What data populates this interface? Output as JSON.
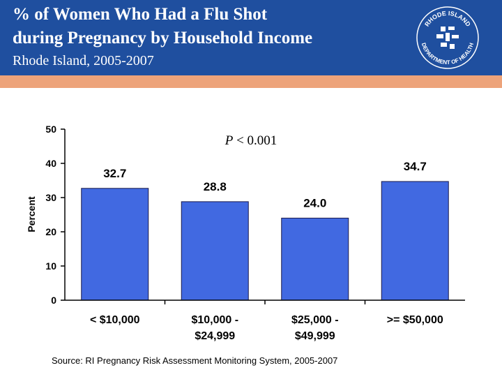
{
  "header": {
    "title_line_1": "% of Women Who Had a Flu Shot",
    "title_line_2": "during Pregnancy  by Household Income",
    "subtitle": "Rhode Island, 2005-2007",
    "logo_text_top": "RHODE ISLAND",
    "logo_text_bottom": "DEPARTMENT OF HEALTH",
    "logo_icon": "ri-department-of-health-seal"
  },
  "colors": {
    "header_bg": "#1f4f9f",
    "accent_bar": "#eda37a",
    "bar_fill": "#4169e1"
  },
  "chart_data": {
    "type": "bar",
    "categories": [
      [
        "< $10,000"
      ],
      [
        "$10,000 -",
        "$24,999"
      ],
      [
        "$25,000 -",
        "$49,999"
      ],
      [
        ">= $50,000"
      ]
    ],
    "values": [
      32.7,
      28.8,
      24.0,
      34.7
    ],
    "value_labels": [
      "32.7",
      "28.8",
      "24.0",
      "34.7"
    ],
    "ylabel": "Percent",
    "ylim": [
      0,
      50
    ],
    "yticks": [
      0,
      10,
      20,
      30,
      40,
      50
    ],
    "annotation": {
      "italic": "P",
      "text": " < 0.001"
    },
    "grid": false,
    "legend": "none"
  },
  "footer": {
    "source": "Source: RI Pregnancy Risk Assessment Monitoring System, 2005-2007"
  }
}
